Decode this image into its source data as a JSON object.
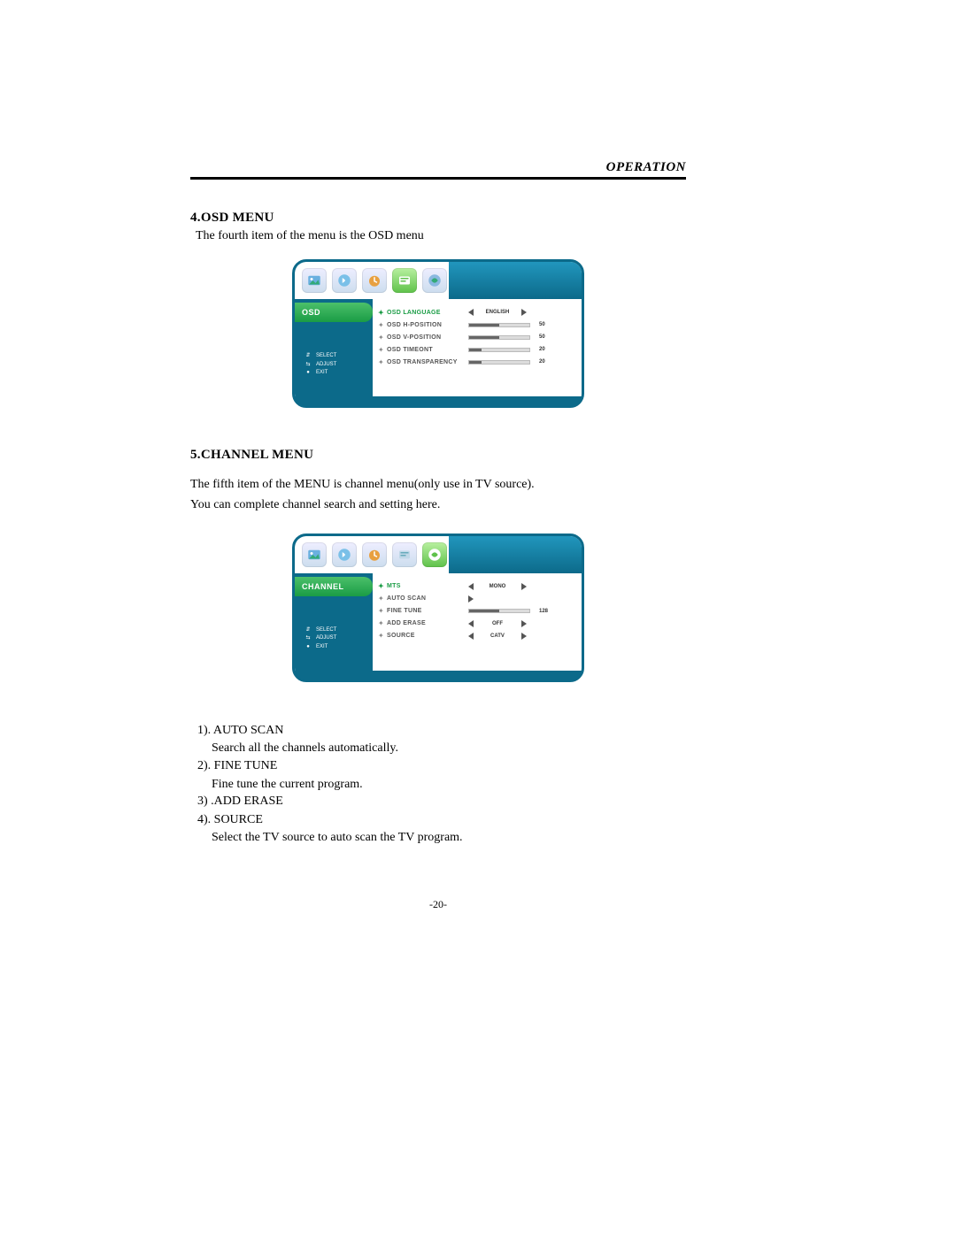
{
  "header": {
    "title": "OPERATION"
  },
  "section1": {
    "heading": "4.OSD MENU",
    "sub": "The fourth item of the menu is the OSD menu"
  },
  "osd_panel": {
    "side_title": "OSD",
    "hints": {
      "select": "SELECT",
      "adjust": "ADJUST",
      "exit": "EXIT"
    },
    "rows": [
      {
        "label": "OSD LANGUAGE",
        "type": "select",
        "value": "ENGLISH",
        "active": true
      },
      {
        "label": "OSD H-POSITION",
        "type": "slider",
        "value": 50,
        "max": 100
      },
      {
        "label": "OSD V-POSITION",
        "type": "slider",
        "value": 50,
        "max": 100
      },
      {
        "label": "OSD TIMEONT",
        "type": "slider",
        "value": 20,
        "max": 100
      },
      {
        "label": "OSD TRANSPARENCY",
        "type": "slider",
        "value": 20,
        "max": 100
      }
    ],
    "colors": {
      "frame": "#0c6a8a",
      "side_green": "#1a9c45",
      "active_text": "#1a9c45"
    }
  },
  "section2": {
    "heading": "5.CHANNEL MENU",
    "line1": "The fifth item of the MENU is channel menu(only use in TV source).",
    "line2": "You can complete channel search and setting here."
  },
  "channel_panel": {
    "side_title": "CHANNEL",
    "hints": {
      "select": "SELECT",
      "adjust": "ADJUST",
      "exit": "EXIT"
    },
    "rows": [
      {
        "label": "MTS",
        "type": "select",
        "value": "MONO",
        "active": true
      },
      {
        "label": "AUTO SCAN",
        "type": "go",
        "value": ""
      },
      {
        "label": "FINE TUNE",
        "type": "slider",
        "value": 128,
        "max": 255
      },
      {
        "label": "ADD ERASE",
        "type": "select",
        "value": "OFF"
      },
      {
        "label": "SOURCE",
        "type": "select",
        "value": "CATV"
      }
    ]
  },
  "list": {
    "i1": "1). AUTO  SCAN",
    "d1": "Search all the channels automatically.",
    "i2": "2). FINE TUNE",
    "d2": "Fine tune the current program.",
    "i3": "3) .ADD ERASE",
    "i4": "4). SOURCE",
    "d4": "Select the TV source to auto scan the TV program."
  },
  "page_num": "-20-"
}
